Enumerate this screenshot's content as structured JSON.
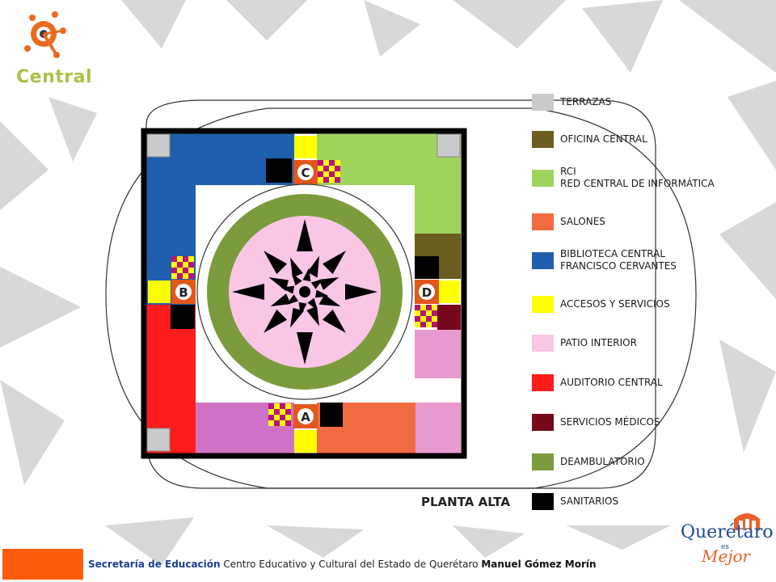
{
  "logo_text": "Central",
  "plan_title": "PLANTA ALTA",
  "access_letters": [
    "A",
    "B",
    "C",
    "D"
  ],
  "legend": [
    {
      "lines": [
        "TERRAZAS"
      ],
      "color": "#c8cacc"
    },
    {
      "lines": [
        "OFICINA CENTRAL"
      ],
      "color": "#6b5c20"
    },
    {
      "lines": [
        "RCI",
        "RED CENTRAL DE INFORMÁTICA"
      ],
      "color": "#9fd45c"
    },
    {
      "lines": [
        "SALONES"
      ],
      "color": "#f26a42"
    },
    {
      "lines": [
        "BIBLIOTECA CENTRAL",
        "FRANCISCO CERVANTES"
      ],
      "color": "#1f5fad"
    },
    {
      "lines": [
        "ACCESOS Y SERVICIOS"
      ],
      "color": "#ffff00"
    },
    {
      "lines": [
        "PATIO INTERIOR"
      ],
      "color": "#f9c6e6"
    },
    {
      "lines": [
        "AUDITORIO CENTRAL"
      ],
      "color": "#ff1c1c"
    },
    {
      "lines": [
        "SERVICIOS MÉDICOS"
      ],
      "color": "#760a1c"
    },
    {
      "lines": [
        "DEAMBULATORIO"
      ],
      "color": "#7b9b3c"
    },
    {
      "lines": [
        "SANITARIOS"
      ],
      "color": "#000000"
    }
  ],
  "colors": {
    "salon_pink": "#e89ad0",
    "salon_violet": "#cf72c6",
    "footer_orange": "#ff5b0c",
    "badge_orange": "#e2571c",
    "checker_magenta": "#b8127c"
  },
  "footer": {
    "part1": "Secretaría de Educación",
    "part2": " Centro Educativo y Cultural del Estado de Querétaro ",
    "part3": "Manuel Gómez Morín"
  },
  "queretaro": {
    "word": "Querétaro",
    "es": "es",
    "mejor": "Mejor"
  }
}
